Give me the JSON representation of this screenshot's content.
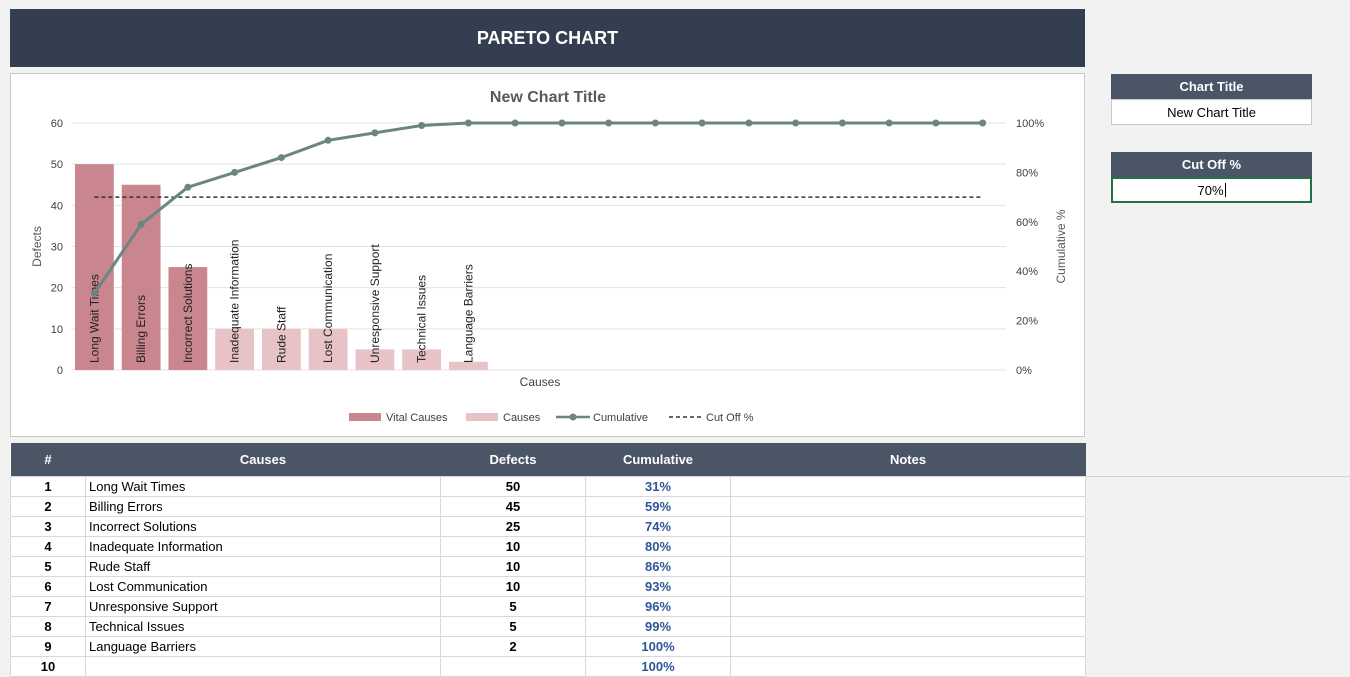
{
  "header": {
    "title": "PARETO CHART"
  },
  "chart_data": {
    "type": "bar",
    "title": "New Chart Title",
    "xlabel": "Causes",
    "ylabel": "Defects",
    "y2label": "Cumulative %",
    "ylim": [
      0,
      60
    ],
    "y_ticks": [
      "0",
      "10",
      "20",
      "30",
      "40",
      "50",
      "60"
    ],
    "y2lim": [
      0,
      100
    ],
    "y2_ticks": [
      "0%",
      "20%",
      "40%",
      "60%",
      "80%",
      "100%"
    ],
    "categories": [
      "Long Wait Times",
      "Billing Errors",
      "Incorrect Solutions",
      "Inadequate Information",
      "Rude Staff",
      "Lost Communication",
      "Unresponsive Support",
      "Technical Issues",
      "Language Barriers",
      "",
      "",
      "",
      "",
      "",
      "",
      "",
      "",
      "",
      "",
      ""
    ],
    "series": [
      {
        "name": "Vital Causes",
        "kind": "bar",
        "color": "#c9868f",
        "values": [
          50,
          45,
          25,
          null,
          null,
          null,
          null,
          null,
          null,
          null,
          null,
          null,
          null,
          null,
          null,
          null,
          null,
          null,
          null,
          null
        ]
      },
      {
        "name": "Causes",
        "kind": "bar",
        "color": "#e7c3c8",
        "values": [
          null,
          null,
          null,
          10,
          10,
          10,
          5,
          5,
          2,
          null,
          null,
          null,
          null,
          null,
          null,
          null,
          null,
          null,
          null,
          null
        ]
      },
      {
        "name": "Cumulative",
        "kind": "line",
        "axis": "secondary",
        "color": "#6b8583",
        "values": [
          31,
          59,
          74,
          80,
          86,
          93,
          96,
          99,
          100,
          100,
          100,
          100,
          100,
          100,
          100,
          100,
          100,
          100,
          100,
          100
        ]
      },
      {
        "name": "Cut Off %",
        "kind": "dashed-line",
        "axis": "secondary",
        "color": "#333333",
        "values": [
          70,
          70,
          70,
          70,
          70,
          70,
          70,
          70,
          70,
          70,
          70,
          70,
          70,
          70,
          70,
          70,
          70,
          70,
          70,
          70
        ]
      }
    ],
    "grid": true,
    "legend_position": "bottom"
  },
  "settings": {
    "chart_title_label": "Chart Title",
    "chart_title_value": "New Chart Title",
    "cutoff_label": "Cut Off %",
    "cutoff_value": "70%"
  },
  "table": {
    "headers": {
      "num": "#",
      "causes": "Causes",
      "defects": "Defects",
      "cumulative": "Cumulative",
      "notes": "Notes"
    },
    "rows": [
      {
        "num": "1",
        "cause": "Long Wait Times",
        "defects": "50",
        "cumulative": "31%",
        "notes": ""
      },
      {
        "num": "2",
        "cause": "Billing Errors",
        "defects": "45",
        "cumulative": "59%",
        "notes": ""
      },
      {
        "num": "3",
        "cause": "Incorrect Solutions",
        "defects": "25",
        "cumulative": "74%",
        "notes": ""
      },
      {
        "num": "4",
        "cause": "Inadequate Information",
        "defects": "10",
        "cumulative": "80%",
        "notes": ""
      },
      {
        "num": "5",
        "cause": "Rude Staff",
        "defects": "10",
        "cumulative": "86%",
        "notes": ""
      },
      {
        "num": "6",
        "cause": "Lost Communication",
        "defects": "10",
        "cumulative": "93%",
        "notes": ""
      },
      {
        "num": "7",
        "cause": "Unresponsive Support",
        "defects": "5",
        "cumulative": "96%",
        "notes": ""
      },
      {
        "num": "8",
        "cause": "Technical Issues",
        "defects": "5",
        "cumulative": "99%",
        "notes": ""
      },
      {
        "num": "9",
        "cause": "Language Barriers",
        "defects": "2",
        "cumulative": "100%",
        "notes": ""
      },
      {
        "num": "10",
        "cause": "",
        "defects": "",
        "cumulative": "100%",
        "notes": ""
      }
    ]
  }
}
